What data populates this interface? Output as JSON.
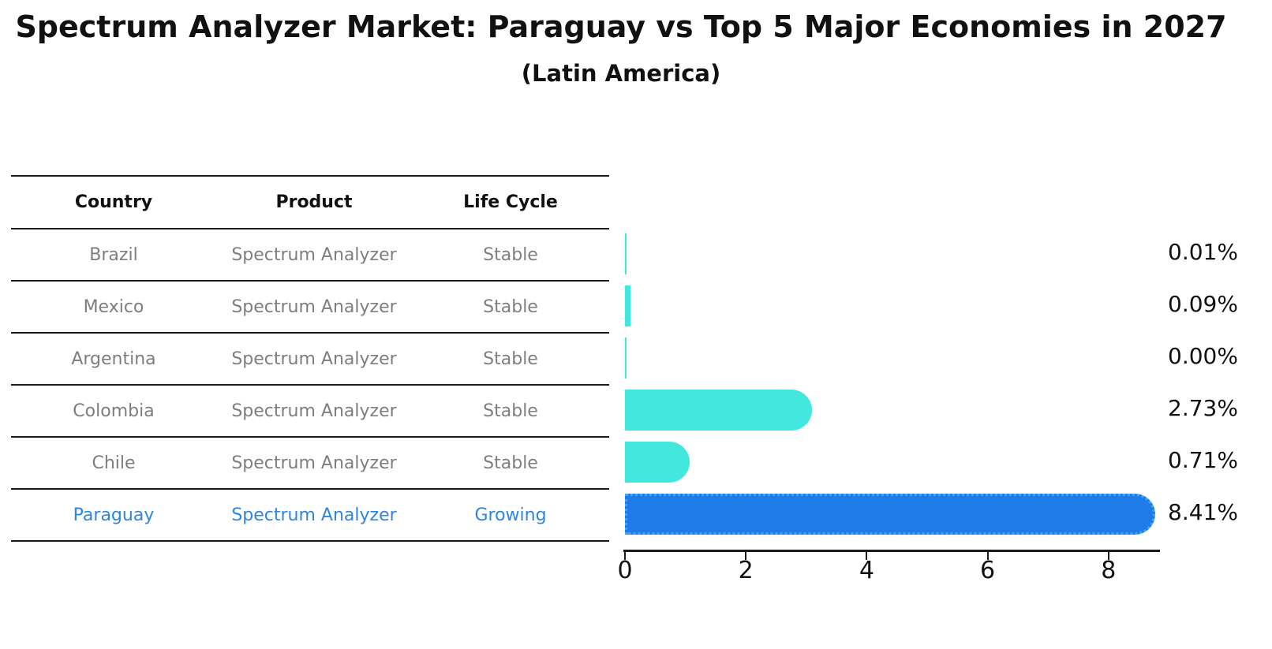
{
  "title": "Spectrum Analyzer Market: Paraguay vs Top 5 Major Economies in 2027",
  "subtitle": "(Latin America)",
  "table": {
    "headers": [
      "Country",
      "Product",
      "Life Cycle"
    ],
    "rows": [
      {
        "country": "Brazil",
        "product": "Spectrum Analyzer",
        "life_cycle": "Stable",
        "highlight": false
      },
      {
        "country": "Mexico",
        "product": "Spectrum Analyzer",
        "life_cycle": "Stable",
        "highlight": false
      },
      {
        "country": "Argentina",
        "product": "Spectrum Analyzer",
        "life_cycle": "Stable",
        "highlight": false
      },
      {
        "country": "Colombia",
        "product": "Spectrum Analyzer",
        "life_cycle": "Stable",
        "highlight": false
      },
      {
        "country": "Chile",
        "product": "Spectrum Analyzer",
        "life_cycle": "Stable",
        "highlight": false
      },
      {
        "country": "Paraguay",
        "product": "Spectrum Analyzer",
        "life_cycle": "Growing",
        "highlight": true
      }
    ]
  },
  "chart_data": {
    "type": "bar",
    "orientation": "horizontal",
    "title": "Spectrum Analyzer Market: Paraguay vs Top 5 Major Economies in 2027",
    "subtitle": "(Latin America)",
    "categories": [
      "Brazil",
      "Mexico",
      "Argentina",
      "Colombia",
      "Chile",
      "Paraguay"
    ],
    "values": [
      0.01,
      0.09,
      0.0,
      2.73,
      0.71,
      8.41
    ],
    "value_labels": [
      "0.01%",
      "0.09%",
      "0.00%",
      "2.73%",
      "0.71%",
      "8.41%"
    ],
    "x_ticks": [
      0,
      2,
      4,
      6,
      8
    ],
    "xlim": [
      0,
      8.85
    ],
    "grid": false,
    "legend": false,
    "highlight_index": 5,
    "bar_color_default": "#42e7de",
    "bar_color_highlight": "#1e7be8",
    "highlight_border_color": "#45a2f2",
    "highlight_text_color": "#2e86de",
    "row_text_color": "#7e7e7e"
  }
}
